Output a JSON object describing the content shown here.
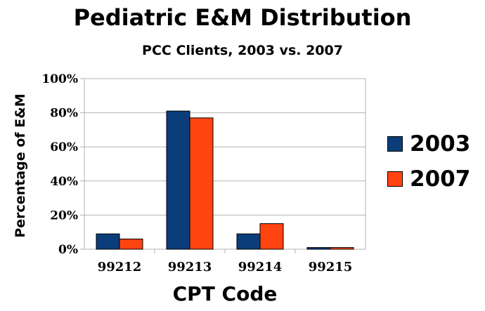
{
  "chart_data": {
    "type": "bar",
    "title": "Pediatric E&M Distribution",
    "subtitle": "PCC Clients, 2003 vs. 2007",
    "xlabel": "CPT Code",
    "ylabel": "Percentage of E&M",
    "categories": [
      "99212",
      "99213",
      "99214",
      "99215"
    ],
    "series": [
      {
        "name": "2003",
        "values": [
          9,
          81,
          9,
          1
        ],
        "color": "#0a3d7a"
      },
      {
        "name": "2007",
        "values": [
          6,
          77,
          15,
          1
        ],
        "color": "#ff4411"
      }
    ],
    "ylim": [
      0,
      100
    ],
    "yticks": [
      "0%",
      "20%",
      "40%",
      "60%",
      "80%",
      "100%"
    ],
    "ytick_values": [
      0,
      20,
      40,
      60,
      80,
      100
    ],
    "grid": true,
    "legend_position": "right"
  }
}
